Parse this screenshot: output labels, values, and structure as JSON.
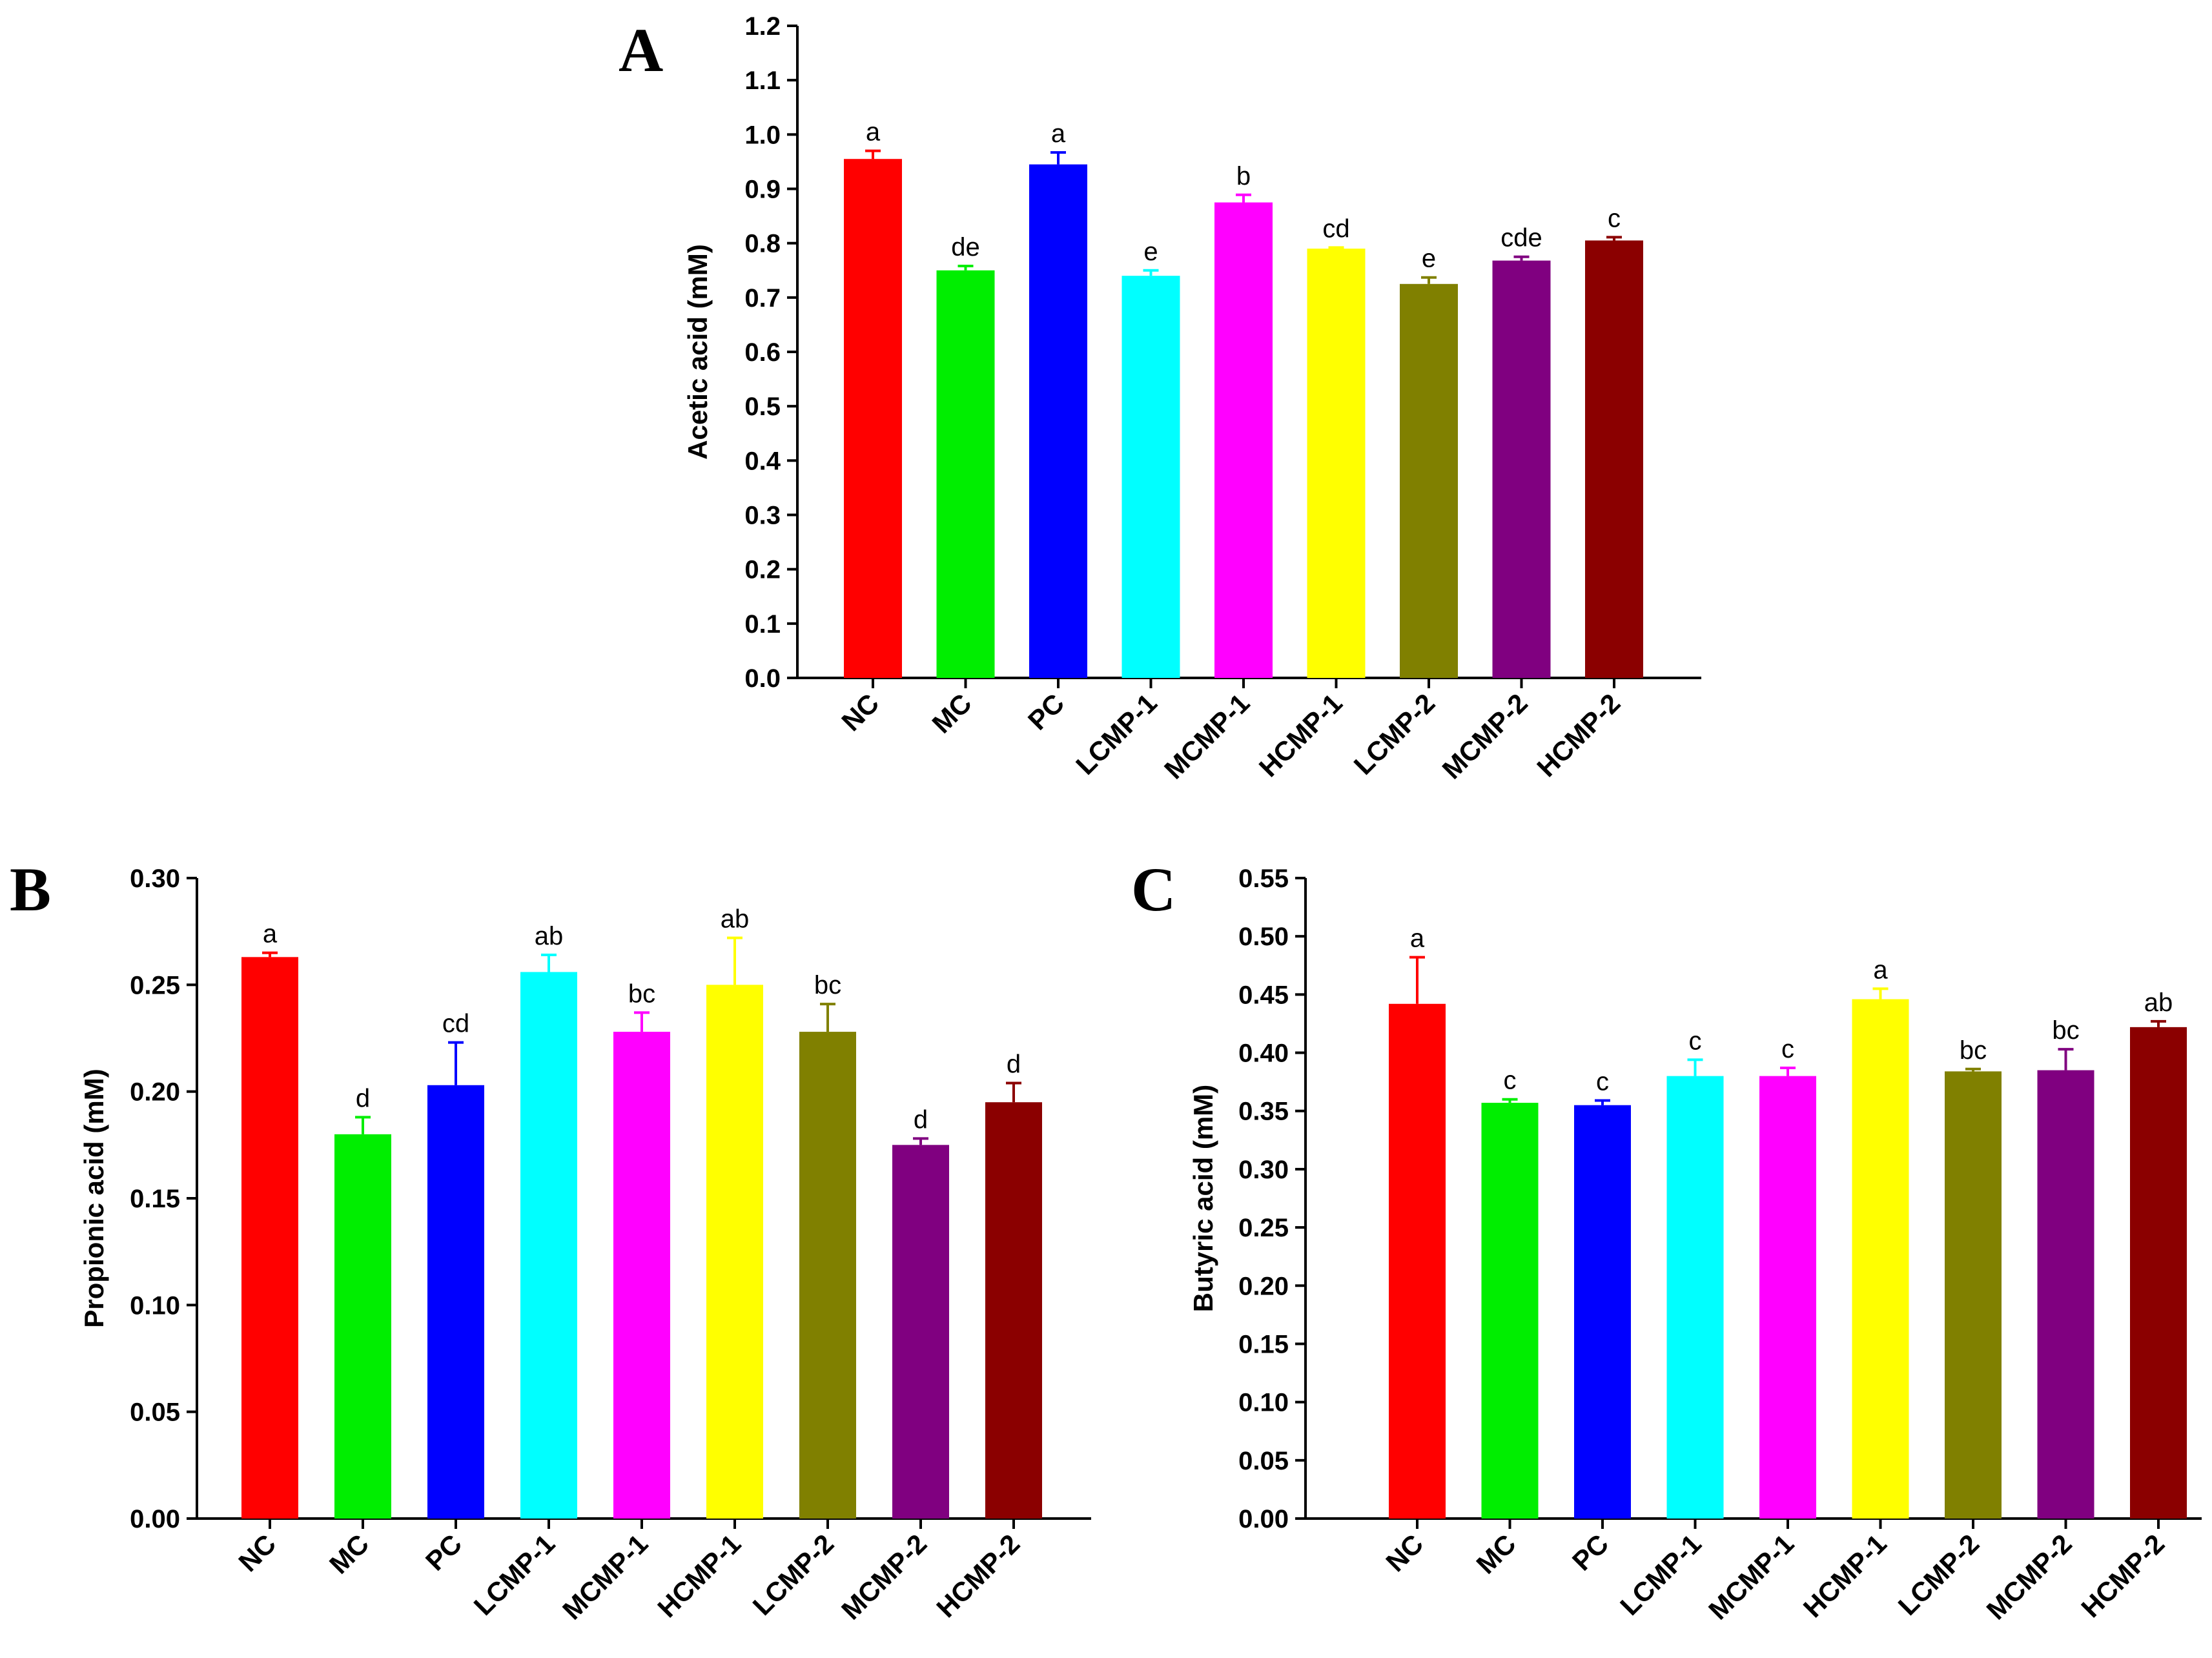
{
  "figure": {
    "panels": [
      "A",
      "B",
      "C"
    ]
  },
  "colors": {
    "NC": "#ff0000",
    "MC": "#00ee00",
    "PC": "#0000ff",
    "LCMP-1": "#00ffff",
    "MCMP-1": "#ff00ff",
    "HCMP-1": "#ffff00",
    "LCMP-2": "#808000",
    "MCMP-2": "#800080",
    "HCMP-2": "#8b0000"
  },
  "chart_data": [
    {
      "panel": "A",
      "type": "bar",
      "title": "",
      "xlabel": "",
      "ylabel": "Acetic acid (mM)",
      "ylim": [
        0,
        1.2
      ],
      "yticks": [
        "0.0",
        "0.1",
        "0.2",
        "0.3",
        "0.4",
        "0.5",
        "0.6",
        "0.7",
        "0.8",
        "0.9",
        "1.0",
        "1.1",
        "1.2"
      ],
      "categories": [
        "NC",
        "MC",
        "PC",
        "LCMP-1",
        "MCMP-1",
        "HCMP-1",
        "LCMP-2",
        "MCMP-2",
        "HCMP-2"
      ],
      "values": [
        0.955,
        0.75,
        0.945,
        0.74,
        0.875,
        0.79,
        0.725,
        0.768,
        0.805
      ],
      "errors": [
        0.015,
        0.008,
        0.022,
        0.01,
        0.014,
        0.002,
        0.012,
        0.007,
        0.006
      ],
      "significance": [
        "a",
        "de",
        "a",
        "e",
        "b",
        "cd",
        "e",
        "cde",
        "c"
      ]
    },
    {
      "panel": "B",
      "type": "bar",
      "title": "",
      "xlabel": "",
      "ylabel": "Propionic acid (mM)",
      "ylim": [
        0,
        0.3
      ],
      "yticks": [
        "0.00",
        "0.05",
        "0.10",
        "0.15",
        "0.20",
        "0.25",
        "0.30"
      ],
      "categories": [
        "NC",
        "MC",
        "PC",
        "LCMP-1",
        "MCMP-1",
        "HCMP-1",
        "LCMP-2",
        "MCMP-2",
        "HCMP-2"
      ],
      "values": [
        0.263,
        0.18,
        0.203,
        0.256,
        0.228,
        0.25,
        0.228,
        0.175,
        0.195
      ],
      "errors": [
        0.002,
        0.008,
        0.02,
        0.008,
        0.009,
        0.022,
        0.013,
        0.003,
        0.009
      ],
      "significance": [
        "a",
        "d",
        "cd",
        "ab",
        "bc",
        "ab",
        "bc",
        "d",
        "d"
      ]
    },
    {
      "panel": "C",
      "type": "bar",
      "title": "",
      "xlabel": "",
      "ylabel": "Butyric acid (mM)",
      "ylim": [
        0,
        0.55
      ],
      "yticks": [
        "0.00",
        "0.05",
        "0.10",
        "0.15",
        "0.20",
        "0.25",
        "0.30",
        "0.35",
        "0.40",
        "0.45",
        "0.50",
        "0.55"
      ],
      "categories": [
        "NC",
        "MC",
        "PC",
        "LCMP-1",
        "MCMP-1",
        "HCMP-1",
        "LCMP-2",
        "MCMP-2",
        "HCMP-2"
      ],
      "values": [
        0.442,
        0.357,
        0.355,
        0.38,
        0.38,
        0.446,
        0.384,
        0.385,
        0.422
      ],
      "errors": [
        0.04,
        0.003,
        0.004,
        0.014,
        0.007,
        0.009,
        0.002,
        0.018,
        0.005
      ],
      "significance": [
        "a",
        "c",
        "c",
        "c",
        "c",
        "a",
        "bc",
        "bc",
        "ab"
      ]
    }
  ]
}
